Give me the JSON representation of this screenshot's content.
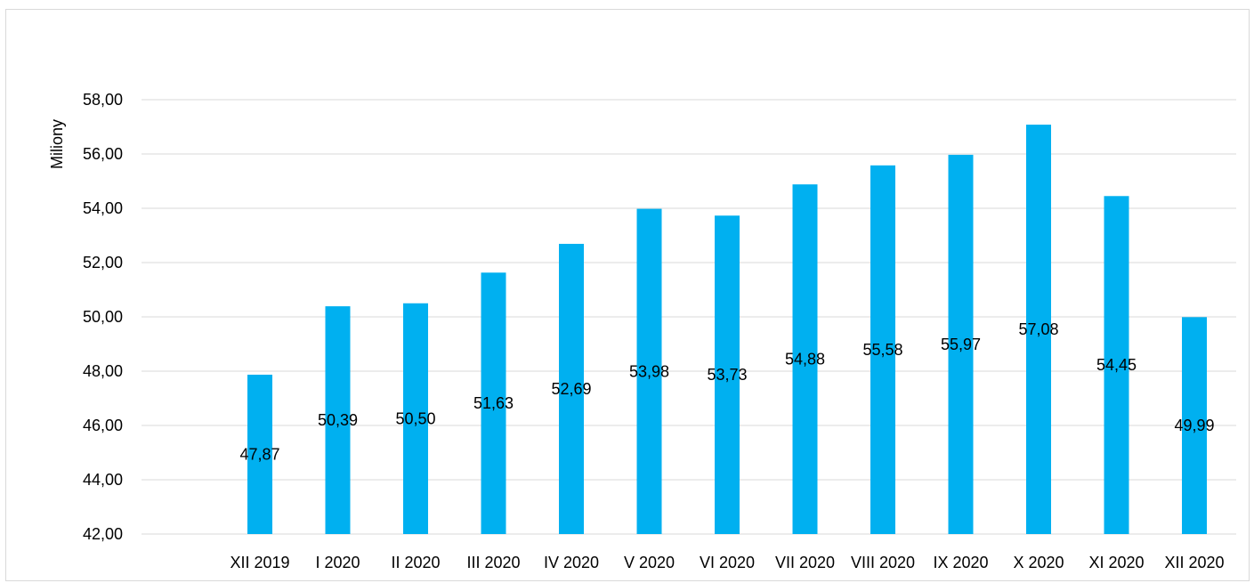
{
  "colors": {
    "bar": "#00b0f0",
    "grid": "#d9d9d9",
    "border": "#d9d9d9",
    "text": "#000000"
  },
  "chart_data": {
    "type": "bar",
    "title": "",
    "xlabel": "",
    "ylabel": "Miliony",
    "categories": [
      "XII 2019",
      "I 2020",
      "II 2020",
      "III 2020",
      "IV 2020",
      "V 2020",
      "VI 2020",
      "VII 2020",
      "VIII 2020",
      "IX 2020",
      "X 2020",
      "XI 2020",
      "XII 2020"
    ],
    "values": [
      47.87,
      50.39,
      50.5,
      51.63,
      52.69,
      53.98,
      53.73,
      54.88,
      55.58,
      55.97,
      57.08,
      54.45,
      49.99
    ],
    "value_labels": [
      "47,87",
      "50,39",
      "50,50",
      "51,63",
      "52,69",
      "53,98",
      "53,73",
      "54,88",
      "55,58",
      "55,97",
      "57,08",
      "54,45",
      "49,99"
    ],
    "ylim": [
      42,
      58
    ],
    "yticks": [
      42,
      44,
      46,
      48,
      50,
      52,
      54,
      56,
      58
    ],
    "ytick_labels": [
      "42,00",
      "44,00",
      "46,00",
      "48,00",
      "50,00",
      "52,00",
      "54,00",
      "56,00",
      "58,00"
    ],
    "grid": true,
    "legend": "none"
  }
}
